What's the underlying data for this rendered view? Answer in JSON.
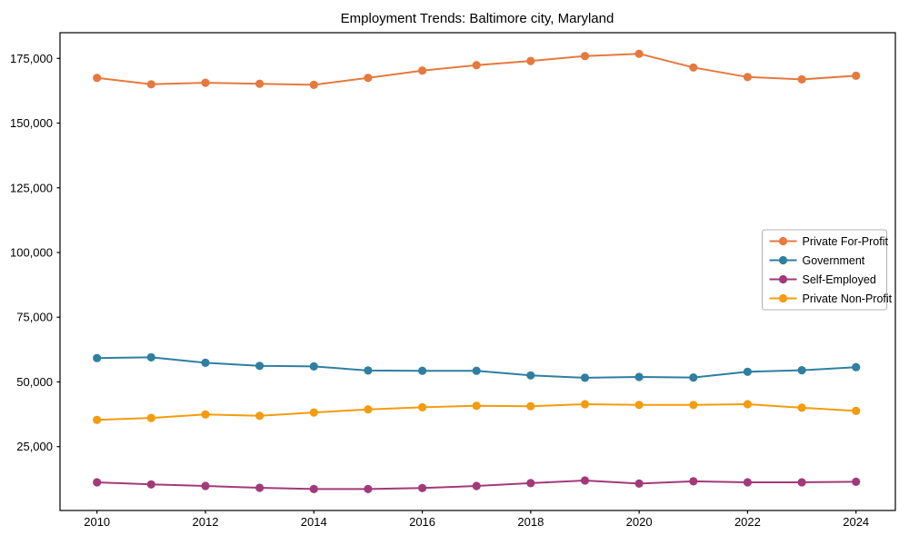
{
  "chart_data": {
    "type": "line",
    "title": "Employment Trends: Baltimore city, Maryland",
    "x": [
      2010,
      2011,
      2012,
      2013,
      2014,
      2015,
      2016,
      2017,
      2018,
      2019,
      2020,
      2021,
      2022,
      2023,
      2024
    ],
    "series": [
      {
        "name": "Private For-Profit",
        "color": "#E5793E",
        "values": [
          167500,
          165000,
          165600,
          165200,
          164800,
          167500,
          170300,
          172400,
          174000,
          175900,
          176800,
          171500,
          167800,
          166900,
          168300
        ]
      },
      {
        "name": "Government",
        "color": "#2E7FA0",
        "values": [
          59200,
          59500,
          57400,
          56200,
          56000,
          54400,
          54300,
          54300,
          52500,
          51600,
          51900,
          51700,
          53900,
          54500,
          55700
        ]
      },
      {
        "name": "Self-Employed",
        "color": "#A23A7A",
        "values": [
          11200,
          10400,
          9800,
          9100,
          8600,
          8600,
          9000,
          9800,
          10900,
          11900,
          10700,
          11600,
          11200,
          11200,
          11400
        ]
      },
      {
        "name": "Private Non-Profit",
        "color": "#F39C0F",
        "values": [
          35300,
          36100,
          37400,
          36900,
          38200,
          39400,
          40200,
          40800,
          40600,
          41400,
          41100,
          41100,
          41400,
          40000,
          38800
        ]
      }
    ],
    "xticks": [
      2010,
      2012,
      2014,
      2016,
      2018,
      2020,
      2022,
      2024
    ],
    "yticks": [
      25000,
      50000,
      75000,
      100000,
      125000,
      150000,
      175000
    ],
    "ytick_labels": [
      "25,000",
      "50,000",
      "75,000",
      "100,000",
      "125,000",
      "150,000",
      "175,000"
    ],
    "xlabel": "",
    "ylabel": "",
    "xlim": [
      2009.3,
      2024.7
    ],
    "ylim": [
      0,
      185000
    ],
    "grid": false,
    "legend_position": "center right",
    "marker": "circle",
    "axis_color": "#000000",
    "legend_border_color": "#B0B0B0"
  }
}
